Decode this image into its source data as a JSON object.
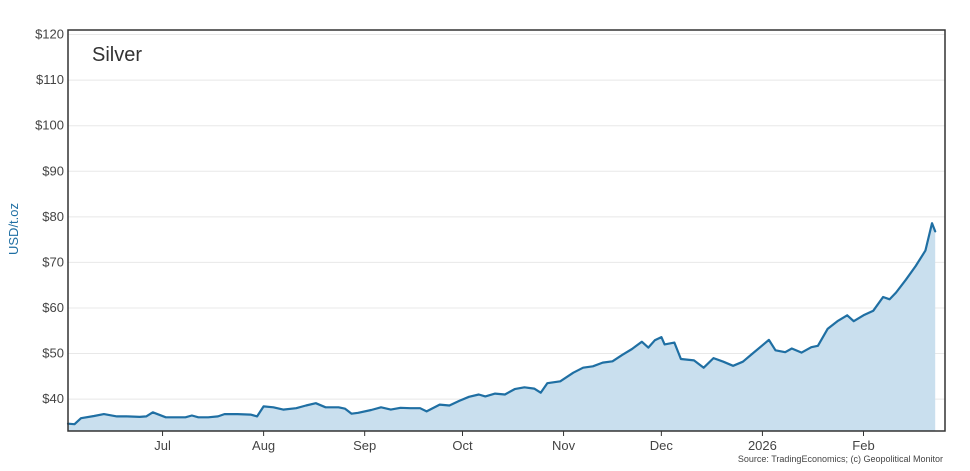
{
  "chart_data": {
    "type": "area",
    "title": "Silver",
    "ylabel": "USD/t.oz",
    "xlabel": "",
    "source": "Source: TradingEconomics; (c) Geopolitical Monitor",
    "ylim": [
      33,
      121
    ],
    "xlim": [
      "2025-06-02",
      "2026-02-26"
    ],
    "y_ticks": [
      {
        "value": 40,
        "label": "$40"
      },
      {
        "value": 50,
        "label": "$50"
      },
      {
        "value": 60,
        "label": "$60"
      },
      {
        "value": 70,
        "label": "$70"
      },
      {
        "value": 80,
        "label": "$80"
      },
      {
        "value": 90,
        "label": "$90"
      },
      {
        "value": 100,
        "label": "$100"
      },
      {
        "value": 110,
        "label": "$110"
      },
      {
        "value": 120,
        "label": "$120"
      }
    ],
    "x_ticks": [
      {
        "date": "2025-07-01",
        "label": "Jul"
      },
      {
        "date": "2025-08-01",
        "label": "Aug"
      },
      {
        "date": "2025-09-01",
        "label": "Sep"
      },
      {
        "date": "2025-10-01",
        "label": "Oct"
      },
      {
        "date": "2025-11-01",
        "label": "Nov"
      },
      {
        "date": "2025-12-01",
        "label": "Dec"
      },
      {
        "date": "2026-01-01",
        "label": "2026"
      },
      {
        "date": "2026-02-01",
        "label": "Feb"
      }
    ],
    "grid": true,
    "colors": {
      "line": "#1f6fa3",
      "fill": "#c9dfee",
      "grid": "#e8e8e8",
      "border": "#333333"
    },
    "series": [
      {
        "points": [
          [
            "2025-06-02",
            34.6
          ],
          [
            "2025-06-04",
            34.5
          ],
          [
            "2025-06-06",
            35.8
          ],
          [
            "2025-06-10",
            36.3
          ],
          [
            "2025-06-13",
            36.7
          ],
          [
            "2025-06-17",
            36.2
          ],
          [
            "2025-06-20",
            36.2
          ],
          [
            "2025-06-24",
            36.1
          ],
          [
            "2025-06-26",
            36.2
          ],
          [
            "2025-06-28",
            37.1
          ],
          [
            "2025-07-02",
            36.0
          ],
          [
            "2025-07-05",
            36.0
          ],
          [
            "2025-07-08",
            36.0
          ],
          [
            "2025-07-10",
            36.4
          ],
          [
            "2025-07-12",
            36.0
          ],
          [
            "2025-07-15",
            36.0
          ],
          [
            "2025-07-18",
            36.2
          ],
          [
            "2025-07-20",
            36.7
          ],
          [
            "2025-07-24",
            36.7
          ],
          [
            "2025-07-28",
            36.6
          ],
          [
            "2025-07-30",
            36.2
          ],
          [
            "2025-08-01",
            38.4
          ],
          [
            "2025-08-04",
            38.2
          ],
          [
            "2025-08-07",
            37.7
          ],
          [
            "2025-08-11",
            38.0
          ],
          [
            "2025-08-14",
            38.6
          ],
          [
            "2025-08-17",
            39.1
          ],
          [
            "2025-08-20",
            38.2
          ],
          [
            "2025-08-24",
            38.2
          ],
          [
            "2025-08-26",
            37.9
          ],
          [
            "2025-08-28",
            36.8
          ],
          [
            "2025-08-30",
            37.0
          ],
          [
            "2025-09-03",
            37.6
          ],
          [
            "2025-09-06",
            38.2
          ],
          [
            "2025-09-09",
            37.7
          ],
          [
            "2025-09-12",
            38.1
          ],
          [
            "2025-09-15",
            38.0
          ],
          [
            "2025-09-18",
            38.0
          ],
          [
            "2025-09-20",
            37.3
          ],
          [
            "2025-09-24",
            38.8
          ],
          [
            "2025-09-27",
            38.6
          ],
          [
            "2025-09-30",
            39.6
          ],
          [
            "2025-10-03",
            40.5
          ],
          [
            "2025-10-06",
            41.0
          ],
          [
            "2025-10-08",
            40.6
          ],
          [
            "2025-10-11",
            41.2
          ],
          [
            "2025-10-14",
            41.0
          ],
          [
            "2025-10-17",
            42.2
          ],
          [
            "2025-10-20",
            42.6
          ],
          [
            "2025-10-23",
            42.3
          ],
          [
            "2025-10-25",
            41.4
          ],
          [
            "2025-10-27",
            43.5
          ],
          [
            "2025-10-31",
            43.9
          ],
          [
            "2025-11-04",
            45.8
          ],
          [
            "2025-11-07",
            46.9
          ],
          [
            "2025-11-10",
            47.2
          ],
          [
            "2025-11-13",
            48.0
          ],
          [
            "2025-11-16",
            48.3
          ],
          [
            "2025-11-19",
            49.7
          ],
          [
            "2025-11-22",
            51.0
          ],
          [
            "2025-11-25",
            52.6
          ],
          [
            "2025-11-27",
            51.3
          ],
          [
            "2025-11-29",
            52.9
          ],
          [
            "2025-12-01",
            53.6
          ],
          [
            "2025-12-02",
            52.0
          ],
          [
            "2025-12-05",
            52.4
          ],
          [
            "2025-12-07",
            48.8
          ],
          [
            "2025-12-11",
            48.5
          ],
          [
            "2025-12-14",
            46.9
          ],
          [
            "2025-12-17",
            49.0
          ],
          [
            "2025-12-20",
            48.2
          ],
          [
            "2025-12-23",
            47.3
          ],
          [
            "2025-12-26",
            48.2
          ],
          [
            "2025-12-29",
            50.0
          ],
          [
            "2026-01-01",
            51.8
          ],
          [
            "2026-01-03",
            53.0
          ],
          [
            "2026-01-05",
            50.7
          ],
          [
            "2026-01-08",
            50.3
          ],
          [
            "2026-01-10",
            51.1
          ],
          [
            "2026-01-13",
            50.2
          ],
          [
            "2026-01-16",
            51.4
          ],
          [
            "2026-01-18",
            51.7
          ],
          [
            "2026-01-21",
            55.4
          ],
          [
            "2026-01-24",
            57.1
          ],
          [
            "2026-01-27",
            58.4
          ],
          [
            "2026-01-29",
            57.1
          ],
          [
            "2026-02-01",
            58.4
          ],
          [
            "2026-02-04",
            59.4
          ],
          [
            "2026-02-07",
            62.4
          ],
          [
            "2026-02-09",
            61.9
          ],
          [
            "2026-02-11",
            63.4
          ],
          [
            "2026-02-14",
            66.2
          ],
          [
            "2026-02-17",
            69.2
          ],
          [
            "2026-02-20",
            72.6
          ],
          [
            "2026-02-22",
            78.6
          ],
          [
            "2026-02-23",
            76.8
          ]
        ]
      }
    ]
  }
}
